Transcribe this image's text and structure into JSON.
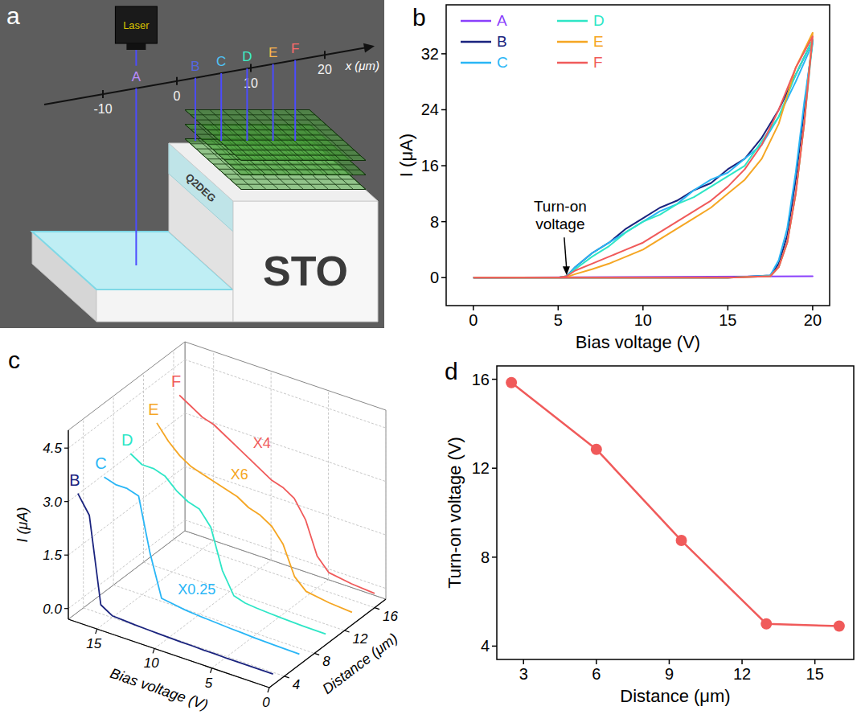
{
  "panel_a": {
    "letter": "a",
    "laser": "Laser",
    "substrate": "STO",
    "interface": "Q2DEG",
    "axis": {
      "label": "x (μm)",
      "ticks": [
        -10,
        0,
        10,
        20
      ],
      "points": [
        {
          "label": "A",
          "x": -5.5,
          "color": "#b98cff"
        },
        {
          "label": "B",
          "x": 2.5,
          "color": "#5566dd"
        },
        {
          "label": "C",
          "x": 6,
          "color": "#4fc3f7"
        },
        {
          "label": "D",
          "x": 9.5,
          "color": "#3ef0c8"
        },
        {
          "label": "E",
          "x": 13,
          "color": "#ffb84d"
        },
        {
          "label": "F",
          "x": 16,
          "color": "#ff6b6b"
        }
      ]
    }
  },
  "chart_data": [
    {
      "panel": "b",
      "type": "line",
      "x_label": "Bias voltage (V)",
      "y_label": "I (μA)",
      "xlim": [
        -1.6,
        21
      ],
      "xticks": [
        0,
        5,
        10,
        15,
        20
      ],
      "ylim": [
        -4,
        39
      ],
      "yticks": [
        0,
        8,
        16,
        24,
        32
      ],
      "legend": "top-left",
      "annotations": [
        {
          "text": "Turn-on voltage",
          "x": 5.5,
          "y": 0
        }
      ],
      "series": [
        {
          "name": "A",
          "color": "#8a3ffc",
          "x": [
            0,
            20,
            0
          ],
          "values": [
            0,
            0.2,
            0
          ]
        },
        {
          "name": "B",
          "color": "#1a237e",
          "x": [
            0,
            5,
            10,
            15,
            17.5,
            18,
            18.5,
            19,
            19.5,
            20,
            19,
            18,
            17,
            16,
            15,
            14,
            13,
            12,
            11,
            10,
            9,
            8,
            7,
            6,
            5.5,
            5,
            0
          ],
          "values": [
            0,
            0,
            0,
            0,
            0.3,
            2,
            6,
            14,
            24,
            34,
            29,
            24,
            20,
            17,
            15.5,
            13.5,
            12.5,
            11,
            10,
            8.5,
            7,
            5,
            3.5,
            1.5,
            0.2,
            0,
            0
          ]
        },
        {
          "name": "C",
          "color": "#29b6f6",
          "x": [
            0,
            5,
            10,
            15,
            17.5,
            18,
            18.5,
            19,
            19.5,
            20,
            19,
            18,
            17,
            16,
            15,
            14,
            13,
            12,
            11,
            10,
            9,
            8,
            7,
            6,
            5.5,
            5,
            0
          ],
          "values": [
            0,
            0,
            0,
            0,
            0.3,
            2.5,
            7,
            15,
            25,
            33.5,
            28,
            23,
            19,
            17,
            15,
            14,
            12.5,
            10.5,
            9.5,
            8,
            6.5,
            5,
            3.5,
            1.5,
            0.2,
            0,
            0
          ]
        },
        {
          "name": "D",
          "color": "#2ee6c6",
          "x": [
            0,
            5,
            10,
            15,
            17.5,
            18,
            18.5,
            19,
            19.5,
            20,
            19,
            18,
            17,
            16,
            15,
            14,
            13,
            12,
            11,
            10,
            9,
            8,
            7,
            6,
            5.5,
            5,
            0
          ],
          "values": [
            0,
            0,
            0,
            0,
            0.2,
            1.5,
            5,
            12,
            22,
            34,
            29,
            23,
            19.5,
            16,
            14.5,
            13,
            11.5,
            10.5,
            9,
            8,
            6.5,
            4.5,
            3,
            1.2,
            0.2,
            0,
            0
          ]
        },
        {
          "name": "E",
          "color": "#f5a623",
          "x": [
            0,
            5,
            10,
            15,
            17.5,
            18,
            18.5,
            19,
            19.5,
            20,
            19,
            18,
            17,
            16,
            15,
            14,
            13,
            12,
            11,
            10,
            9,
            8,
            7,
            6,
            5.5,
            5,
            0
          ],
          "values": [
            0,
            0,
            0,
            0,
            0.2,
            1.5,
            5,
            12,
            22,
            35,
            30,
            22,
            17,
            14,
            12,
            10,
            8.5,
            7,
            5.5,
            4,
            3,
            2,
            1.2,
            0.5,
            0.1,
            0,
            0
          ]
        },
        {
          "name": "F",
          "color": "#f05a5a",
          "x": [
            0,
            5,
            10,
            15,
            17.5,
            18,
            18.5,
            19,
            19.5,
            20,
            19,
            18,
            17,
            16,
            15,
            14,
            13,
            12,
            11,
            10,
            9,
            8,
            7,
            6,
            5.5,
            5,
            0
          ],
          "values": [
            0,
            0,
            0,
            0,
            0.2,
            1.5,
            5,
            12,
            22,
            34.5,
            30,
            24,
            19,
            15.5,
            13,
            11,
            9.5,
            8,
            6.5,
            5,
            4,
            3,
            2,
            1,
            0.2,
            0,
            0
          ]
        }
      ]
    },
    {
      "panel": "c",
      "type": "waterfall",
      "x_label": "Bias voltage (V)",
      "y_label": "I (μA)",
      "z_label": "Distance (μm)",
      "xlim": [
        0,
        17.5
      ],
      "xticks": [
        0,
        5,
        10,
        15
      ],
      "ylim": [
        -0.3,
        5
      ],
      "yticks": [
        {
          "value": 0,
          "label": "0.0"
        },
        1.5,
        {
          "value": 3,
          "label": "3.0"
        },
        4.5
      ],
      "zlim": [
        2,
        17.5
      ],
      "zticks": [
        4,
        8,
        12,
        16
      ],
      "x": [
        17,
        16,
        15,
        14,
        13,
        12,
        11,
        10,
        9,
        8,
        7,
        6,
        5,
        4,
        2,
        0
      ],
      "series": [
        {
          "name": "B",
          "color": "#1a237e",
          "distance": 2.5,
          "values": [
            3.2,
            2.7,
            0.3,
            0.1,
            0.08,
            0.06,
            0.05,
            0.04,
            0.03,
            0.02,
            0.02,
            0.01,
            0.01,
            0,
            0,
            0
          ]
        },
        {
          "name": "C",
          "color": "#29b6f6",
          "distance": 6,
          "scale_label": "X0.25",
          "values": [
            3.1,
            3.0,
            3.0,
            2.9,
            1.4,
            0.25,
            0.2,
            0.15,
            0.12,
            0.1,
            0.08,
            0.06,
            0.05,
            0.03,
            0.01,
            0
          ]
        },
        {
          "name": "D",
          "color": "#2ee6c6",
          "distance": 9.5,
          "values": [
            3.2,
            3.0,
            3.0,
            2.9,
            2.6,
            2.4,
            2.3,
            1.9,
            0.8,
            0.2,
            0.1,
            0.07,
            0.05,
            0.03,
            0.01,
            0
          ]
        },
        {
          "name": "E",
          "color": "#f5a623",
          "distance": 13,
          "scale_label": "X6",
          "values": [
            3.5,
            3.1,
            2.8,
            2.6,
            2.5,
            2.4,
            2.3,
            2.2,
            2.0,
            1.9,
            1.7,
            1.3,
            0.5,
            0.2,
            0.1,
            0.05
          ]
        },
        {
          "name": "F",
          "color": "#f05a5a",
          "distance": 16,
          "scale_label": "X4",
          "values": [
            3.8,
            3.6,
            3.4,
            3.3,
            3.1,
            2.9,
            2.7,
            2.5,
            2.3,
            2.2,
            2.0,
            1.5,
            0.6,
            0.25,
            0.15,
            0.1
          ]
        }
      ]
    },
    {
      "panel": "d",
      "type": "line",
      "marker": "circle",
      "color": "#f05a5a",
      "x_label": "Distance (μm)",
      "y_label": "Turn-on voltage (V)",
      "x": [
        2.5,
        6,
        9.5,
        13,
        16
      ],
      "values": [
        15.85,
        12.85,
        8.75,
        5.0,
        4.9
      ],
      "xlim": [
        1.9,
        16.6
      ],
      "xticks": [
        3,
        6,
        9,
        12,
        15
      ],
      "ylim": [
        3.4,
        16.6
      ],
      "yticks": [
        4,
        8,
        12,
        16
      ]
    }
  ]
}
